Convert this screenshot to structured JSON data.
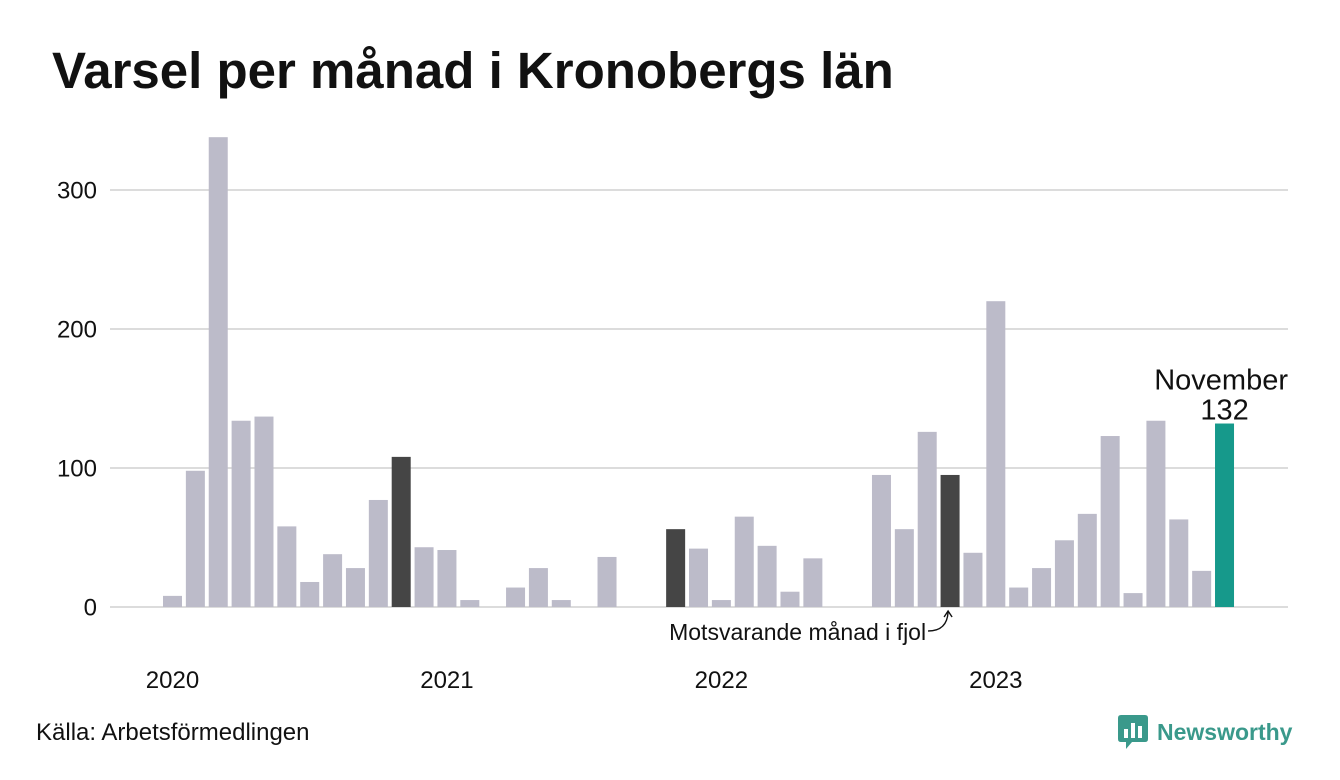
{
  "source": "Källa: Arbetsförmedlingen",
  "logo": {
    "text": "Newsworthy",
    "icon": "newsworthy-bar-chart-icon",
    "color": "#3a998b"
  },
  "chart_data": {
    "type": "bar",
    "title": "Varsel per månad i Kronobergs län",
    "xlabel": "",
    "ylabel": "",
    "x": [
      "2020-01",
      "2020-02",
      "2020-03",
      "2020-04",
      "2020-05",
      "2020-06",
      "2020-07",
      "2020-08",
      "2020-09",
      "2020-10",
      "2020-11",
      "2020-12",
      "2021-01",
      "2021-02",
      "2021-03",
      "2021-04",
      "2021-05",
      "2021-06",
      "2021-07",
      "2021-08",
      "2021-09",
      "2021-10",
      "2021-11",
      "2021-12",
      "2022-01",
      "2022-02",
      "2022-03",
      "2022-04",
      "2022-05",
      "2022-06",
      "2022-07",
      "2022-08",
      "2022-09",
      "2022-10",
      "2022-11",
      "2022-12",
      "2023-01",
      "2023-02",
      "2023-03",
      "2023-04",
      "2023-05",
      "2023-06",
      "2023-07",
      "2023-08",
      "2023-09",
      "2023-10",
      "2023-11"
    ],
    "values": [
      8,
      98,
      338,
      134,
      137,
      58,
      18,
      38,
      28,
      77,
      108,
      43,
      41,
      5,
      0,
      14,
      28,
      5,
      0,
      36,
      0,
      0,
      56,
      42,
      5,
      65,
      44,
      11,
      35,
      0,
      0,
      95,
      56,
      126,
      95,
      39,
      220,
      14,
      28,
      48,
      67,
      123,
      10,
      134,
      63,
      26,
      132
    ],
    "x_tick_labels": [
      "2020",
      "2021",
      "2022",
      "2023"
    ],
    "y_ticks": [
      0,
      100,
      200,
      300
    ],
    "ylim": [
      0,
      340
    ],
    "grid": true,
    "colors": {
      "default": "#bcbbc9",
      "same_month_previous_years": "#454545",
      "latest": "#16998b",
      "gridline": "#dcdcdc"
    },
    "highlight_previous": [
      "2020-11",
      "2021-11",
      "2022-11"
    ],
    "highlight_latest": "2023-11",
    "annotations": {
      "latest_month": "November",
      "previous_year_note": "Motsvarande månad i fjol",
      "previous_year_target": "2022-11"
    }
  }
}
